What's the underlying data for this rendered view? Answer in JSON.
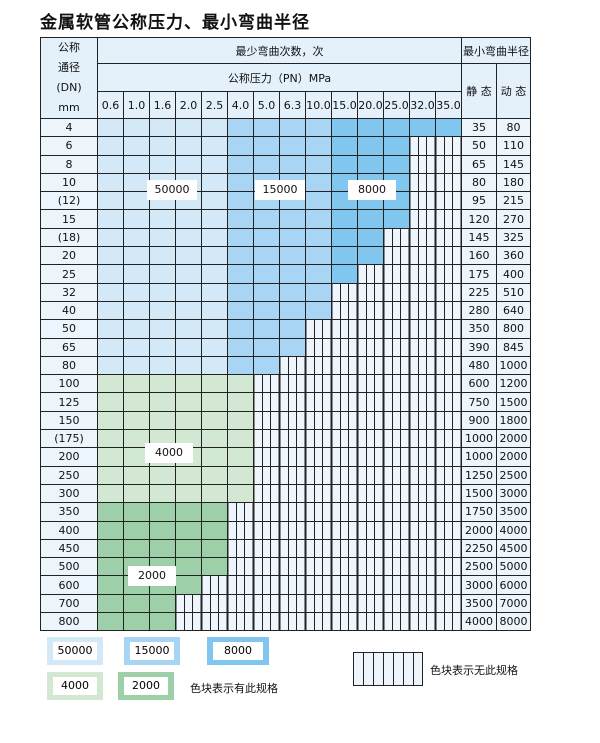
{
  "title": "金属软管公称压力、最小弯曲半径",
  "header": {
    "dn_label_lines": [
      "公称",
      "通径",
      "(DN)",
      "mm"
    ],
    "cycles_label": "最少弯曲次数，次",
    "pressure_label": "公称压力（PN）MPa",
    "radius_label": "最小弯曲半径",
    "static_label": "静 态",
    "dynamic_label": "动 态",
    "pressures": [
      "0.6",
      "1.0",
      "1.6",
      "2.0",
      "2.5",
      "4.0",
      "5.0",
      "6.3",
      "10.0",
      "15.0",
      "20.0",
      "25.0",
      "32.0",
      "35.0"
    ]
  },
  "grade_key": {
    "A": "50000",
    "B": "15000",
    "C": "8000",
    "D": "4000",
    "E": "2000",
    ".": "none"
  },
  "colors": {
    "A": "#d3e9f8",
    "B": "#a8d5f3",
    "C": "#80c6ee",
    "D": "#d2e8d3",
    "E": "#9dd0a8"
  },
  "rows": [
    {
      "dn": "4",
      "static": "35",
      "dynamic": "80",
      "grades": "AAAAABBBBCCCCC"
    },
    {
      "dn": "6",
      "static": "50",
      "dynamic": "110",
      "grades": "AAAAABBBBCCC.."
    },
    {
      "dn": "8",
      "static": "65",
      "dynamic": "145",
      "grades": "AAAAABBBBCCC.."
    },
    {
      "dn": "10",
      "static": "80",
      "dynamic": "180",
      "grades": "AAAAABBBBCCC.."
    },
    {
      "dn": "(12)",
      "static": "95",
      "dynamic": "215",
      "grades": "AAAAABBBBCCC.."
    },
    {
      "dn": "15",
      "static": "120",
      "dynamic": "270",
      "grades": "AAAAABBBBCCC.."
    },
    {
      "dn": "(18)",
      "static": "145",
      "dynamic": "325",
      "grades": "AAAAABBBBCC..."
    },
    {
      "dn": "20",
      "static": "160",
      "dynamic": "360",
      "grades": "AAAAABBBBCC..."
    },
    {
      "dn": "25",
      "static": "175",
      "dynamic": "400",
      "grades": "AAAAABBBBC...."
    },
    {
      "dn": "32",
      "static": "225",
      "dynamic": "510",
      "grades": "AAAAABBBB....."
    },
    {
      "dn": "40",
      "static": "280",
      "dynamic": "640",
      "grades": "AAAAABBBB....."
    },
    {
      "dn": "50",
      "static": "350",
      "dynamic": "800",
      "grades": "AAAAABBB......"
    },
    {
      "dn": "65",
      "static": "390",
      "dynamic": "845",
      "grades": "AAAAABBB......"
    },
    {
      "dn": "80",
      "static": "480",
      "dynamic": "1000",
      "grades": "AAAAABB......."
    },
    {
      "dn": "100",
      "static": "600",
      "dynamic": "1200",
      "grades": "DDDDDD........"
    },
    {
      "dn": "125",
      "static": "750",
      "dynamic": "1500",
      "grades": "DDDDDD........"
    },
    {
      "dn": "150",
      "static": "900",
      "dynamic": "1800",
      "grades": "DDDDDD........"
    },
    {
      "dn": "(175)",
      "static": "1000",
      "dynamic": "2000",
      "grades": "DDDDDD........"
    },
    {
      "dn": "200",
      "static": "1000",
      "dynamic": "2000",
      "grades": "DDDDDD........"
    },
    {
      "dn": "250",
      "static": "1250",
      "dynamic": "2500",
      "grades": "DDDDDD........"
    },
    {
      "dn": "300",
      "static": "1500",
      "dynamic": "3000",
      "grades": "DDDDDD........"
    },
    {
      "dn": "350",
      "static": "1750",
      "dynamic": "3500",
      "grades": "EEEEE........."
    },
    {
      "dn": "400",
      "static": "2000",
      "dynamic": "4000",
      "grades": "EEEEE........."
    },
    {
      "dn": "450",
      "static": "2250",
      "dynamic": "4500",
      "grades": "EEEEE........."
    },
    {
      "dn": "500",
      "static": "2500",
      "dynamic": "5000",
      "grades": "EEEEE........."
    },
    {
      "dn": "600",
      "static": "3000",
      "dynamic": "6000",
      "grades": "EEEE.........."
    },
    {
      "dn": "700",
      "static": "3500",
      "dynamic": "7000",
      "grades": "EEE..........."
    },
    {
      "dn": "800",
      "static": "4000",
      "dynamic": "8000",
      "grades": "EEE..........."
    }
  ],
  "region_labels": {
    "a": "50000",
    "b": "15000",
    "c": "8000",
    "d": "4000",
    "e": "2000"
  },
  "legend": {
    "items": [
      "50000",
      "15000",
      "8000",
      "4000",
      "2000"
    ],
    "has_spec_text": "色块表示有此规格",
    "no_spec_text": "色块表示无此规格"
  }
}
